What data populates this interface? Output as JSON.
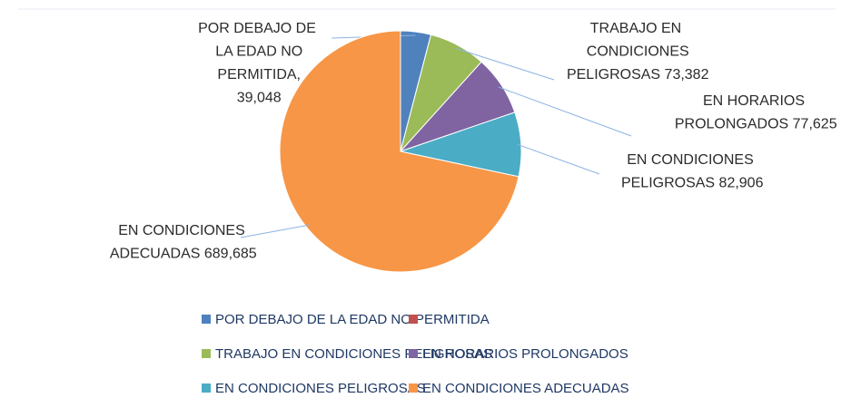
{
  "chart_data": {
    "type": "pie",
    "categories": [
      "POR DEBAJO DE LA EDAD NO PERMITIDA",
      null,
      "TRABAJO EN CONDICIONES PELIGROSAS",
      "EN HORARIOS PROLONGADOS",
      "EN CONDICIONES PELIGROSAS",
      "EN CONDICIONES ADECUADAS"
    ],
    "values": [
      39048,
      0,
      73382,
      77625,
      82906,
      689685
    ],
    "value_labels": [
      "POR DEBAJO DE LA EDAD NO PERMITIDA, 39,048",
      null,
      "TRABAJO EN CONDICIONES PELIGROSAS 73,382",
      "EN HORARIOS PROLONGADOS 77,625",
      "EN CONDICIONES PELIGROSAS 82,906",
      "EN CONDICIONES ADECUADAS 689,685"
    ],
    "colors": [
      "#4f81bd",
      "#c0504d",
      "#9bbb59",
      "#8064a2",
      "#4bacc6",
      "#f79646"
    ],
    "legend": "bottom"
  }
}
